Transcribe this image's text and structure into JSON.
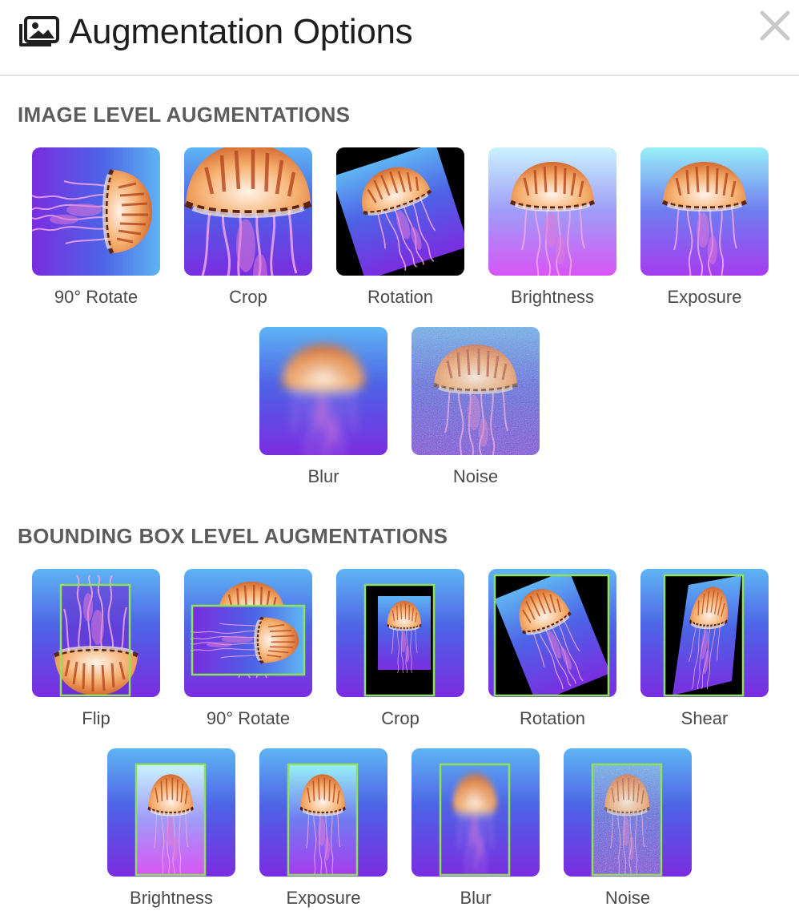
{
  "header": {
    "title": "Augmentation Options",
    "icon": "images-stack-icon",
    "close_icon": "close-icon"
  },
  "sections": [
    {
      "title": "IMAGE LEVEL AUGMENTATIONS",
      "items": [
        {
          "label": "90° Rotate"
        },
        {
          "label": "Crop"
        },
        {
          "label": "Rotation"
        },
        {
          "label": "Brightness"
        },
        {
          "label": "Exposure"
        },
        {
          "label": "Blur"
        },
        {
          "label": "Noise"
        }
      ]
    },
    {
      "title": "BOUNDING BOX LEVEL AUGMENTATIONS",
      "items": [
        {
          "label": "Flip"
        },
        {
          "label": "90° Rotate"
        },
        {
          "label": "Crop"
        },
        {
          "label": "Rotation"
        },
        {
          "label": "Shear"
        },
        {
          "label": "Brightness"
        },
        {
          "label": "Exposure"
        },
        {
          "label": "Blur"
        },
        {
          "label": "Noise"
        }
      ]
    }
  ],
  "colors": {
    "bg_top": "#62b4f2",
    "bg_bottom": "#7a2fe0",
    "bbox": "#8ee35a",
    "jelly_cap": "#f2a24a"
  }
}
